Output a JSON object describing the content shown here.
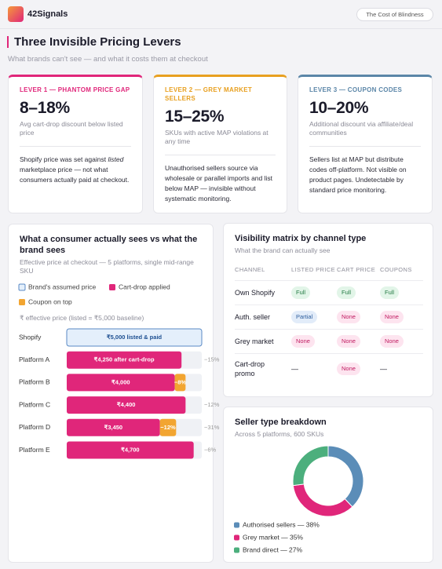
{
  "header": {
    "brand": "42Signals",
    "badge": "The Cost of Blindness"
  },
  "section": {
    "title": "Three Invisible Pricing Levers",
    "subtitle": "What brands can't see — and what it costs them at checkout"
  },
  "levers": [
    {
      "label": "LEVER 1 — PHANTOM PRICE GAP",
      "color": "#e0267a",
      "value": "8–18%",
      "caption": "Avg cart-drop discount below listed price",
      "description": [
        {
          "text": "Shopify price was set against "
        },
        {
          "text": "listed",
          "italic": true
        },
        {
          "text": " marketplace price — not what consumers actually paid at checkout."
        }
      ]
    },
    {
      "label": "LEVER 2 — GREY MARKET SELLERS",
      "color": "#e8a020",
      "value": "15–25%",
      "caption": "SKUs with active MAP violations at any time",
      "description": [
        {
          "text": "Unauthorised sellers source via wholesale or parallel imports and list below MAP — invisible without systematic monitoring."
        }
      ]
    },
    {
      "label": "LEVER 3 — COUPON CODES",
      "color": "#5b86a8",
      "value": "10–20%",
      "caption": "Additional discount via affiliate/deal communities",
      "description": [
        {
          "text": "Sellers list at MAP but distribute codes off-platform. Not visible on product pages. Undetectable by standard price monitoring."
        }
      ]
    }
  ],
  "chart_data": [
    {
      "type": "bar",
      "orientation": "horizontal",
      "stacked": true,
      "title": "What a consumer actually sees vs what the brand sees",
      "subtitle": "Effective price at checkout — 5 platforms, single mid-range SKU",
      "axis_label": "₹ effective price (listed = ₹5,000 baseline)",
      "xlim": [
        0,
        5000
      ],
      "categories": [
        "Shopify",
        "Platform A",
        "Platform B",
        "Platform C",
        "Platform D",
        "Platform E"
      ],
      "series": [
        {
          "name": "Brand's assumed price",
          "color": "#e4effb",
          "stroke": "#5a8ac6",
          "text_color": "#1d4f91",
          "values": [
            5000,
            null,
            null,
            null,
            null,
            null
          ],
          "value_labels": [
            "₹5,000 listed & paid",
            null,
            null,
            null,
            null,
            null
          ]
        },
        {
          "name": "Cart-drop applied",
          "color": "#e0267a",
          "text_color": "#ffffff",
          "values": [
            null,
            4250,
            4000,
            4400,
            3450,
            4700
          ],
          "value_labels": [
            null,
            "₹4,250 after cart-drop",
            "₹4,000",
            "₹4,400",
            "₹3,450",
            "₹4,700"
          ]
        },
        {
          "name": "Coupon on top",
          "color": "#f2a531",
          "text_color": "#ffffff",
          "values": [
            null,
            null,
            400,
            null,
            600,
            null
          ],
          "value_labels": [
            null,
            null,
            "−8%",
            null,
            "−12%",
            null
          ]
        }
      ],
      "discount_labels": [
        null,
        "−15%",
        null,
        "−12%",
        "−31%",
        "−6%"
      ]
    },
    {
      "type": "pie",
      "donut": true,
      "title": "Seller type breakdown",
      "subtitle": "Across 5 platforms, 600 SKUs",
      "labels": [
        "Authorised sellers — 38%",
        "Grey market — 35%",
        "Brand direct — 27%"
      ],
      "values": [
        38,
        35,
        27
      ],
      "colors": [
        "#5b8db8",
        "#e0267a",
        "#4caf7d"
      ]
    }
  ],
  "matrix": {
    "title": "Visibility matrix by channel type",
    "subtitle": "What the brand can actually see",
    "columns": [
      "CHANNEL",
      "LISTED PRICE",
      "CART PRICE",
      "COUPONS"
    ],
    "rows": [
      [
        {
          "text": "Own Shopify"
        },
        {
          "text": "Full",
          "color": "green"
        },
        {
          "text": "Full",
          "color": "green"
        },
        {
          "text": "Full",
          "color": "green"
        }
      ],
      [
        {
          "text": "Auth. seller"
        },
        {
          "text": "Partial",
          "color": "blue"
        },
        {
          "text": "None",
          "color": "pink"
        },
        {
          "text": "None",
          "color": "pink"
        }
      ],
      [
        {
          "text": "Grey market"
        },
        {
          "text": "None",
          "color": "pink"
        },
        {
          "text": "None",
          "color": "pink"
        },
        {
          "text": "None",
          "color": "pink"
        }
      ],
      [
        {
          "text": "Cart-drop promo"
        },
        {
          "text": "—"
        },
        {
          "text": "None",
          "color": "pink"
        },
        {
          "text": "—"
        }
      ]
    ]
  }
}
